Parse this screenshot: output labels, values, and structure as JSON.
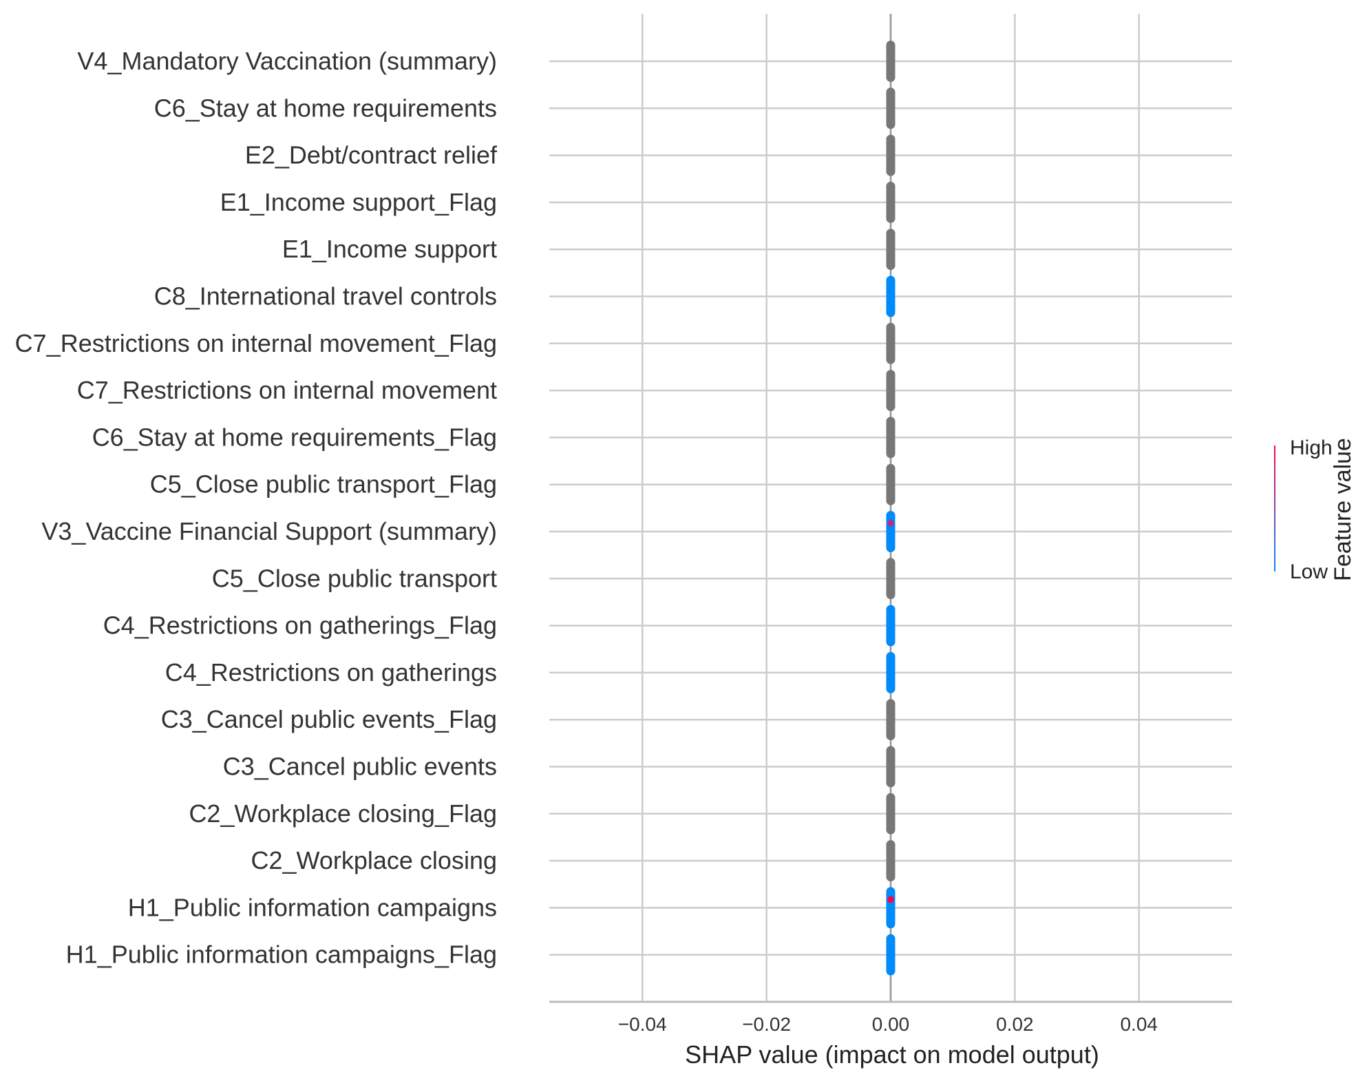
{
  "chart_data": {
    "type": "scatter",
    "subtype": "shap-beeswarm",
    "xlabel": "SHAP value (impact on model output)",
    "xlim": [
      -0.055,
      0.055
    ],
    "xticks": [
      -0.04,
      -0.02,
      0.0,
      0.02,
      0.04
    ],
    "xtick_labels": [
      "−0.04",
      "−0.02",
      "0.00",
      "0.02",
      "0.04"
    ],
    "grid": true,
    "features": [
      {
        "name": "V4_Mandatory Vaccination (summary)",
        "shap": 0.0,
        "color": "#777777"
      },
      {
        "name": "C6_Stay at home requirements",
        "shap": 0.0,
        "color": "#777777"
      },
      {
        "name": "E2_Debt/contract relief",
        "shap": 0.0,
        "color": "#777777"
      },
      {
        "name": "E1_Income support_Flag",
        "shap": 0.0,
        "color": "#777777"
      },
      {
        "name": "E1_Income support",
        "shap": 0.0,
        "color": "#777777"
      },
      {
        "name": "C8_International travel controls",
        "shap": 0.0,
        "color": "#008bfb"
      },
      {
        "name": "C7_Restrictions on internal movement_Flag",
        "shap": 0.0,
        "color": "#777777"
      },
      {
        "name": "C7_Restrictions on internal movement",
        "shap": 0.0,
        "color": "#777777"
      },
      {
        "name": "C6_Stay at home requirements_Flag",
        "shap": 0.0,
        "color": "#777777"
      },
      {
        "name": "C5_Close public transport_Flag",
        "shap": 0.0,
        "color": "#777777"
      },
      {
        "name": "V3_Vaccine Financial Support (summary)",
        "shap": 0.0,
        "color": "#008bfb",
        "highlight": "#b0308a"
      },
      {
        "name": "C5_Close public transport",
        "shap": 0.0,
        "color": "#777777"
      },
      {
        "name": "C4_Restrictions on gatherings_Flag",
        "shap": 0.0,
        "color": "#008bfb"
      },
      {
        "name": "C4_Restrictions on gatherings",
        "shap": 0.0,
        "color": "#008bfb"
      },
      {
        "name": "C3_Cancel public events_Flag",
        "shap": 0.0,
        "color": "#777777"
      },
      {
        "name": "C3_Cancel public events",
        "shap": 0.0,
        "color": "#777777"
      },
      {
        "name": "C2_Workplace closing_Flag",
        "shap": 0.0,
        "color": "#777777"
      },
      {
        "name": "C2_Workplace closing",
        "shap": 0.0,
        "color": "#777777"
      },
      {
        "name": "H1_Public information campaigns",
        "shap": 0.0,
        "color": "#008bfb",
        "highlight": "#ff0052"
      },
      {
        "name": "H1_Public information campaigns_Flag",
        "shap": 0.0,
        "color": "#008bfb"
      }
    ],
    "colorbar": {
      "title": "Feature value",
      "high_label": "High",
      "low_label": "Low",
      "high_color": "#ff0052",
      "low_color": "#008bfb"
    }
  }
}
